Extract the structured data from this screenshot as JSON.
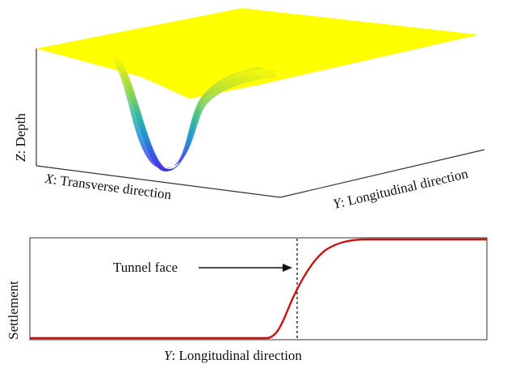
{
  "surface_3d": {
    "z_axis_label_var": "Z",
    "z_axis_label_text": ": Depth",
    "x_axis_label_var": "X",
    "x_axis_label_text": ": Transverse direction",
    "y_axis_label_var": "Y",
    "y_axis_label_text": ": Longitudinal direction",
    "colormap": [
      "#ffff00",
      "#c6e42a",
      "#7ed05a",
      "#2fb6a3",
      "#1e8fd6",
      "#3a55e6",
      "#4631e0"
    ]
  },
  "settlement_profile": {
    "ylabel": "Settlement",
    "xlabel_var": "Y",
    "xlabel_text": ": Longitudinal direction",
    "annotation": "Tunnel face",
    "curve_color": "#cc1111"
  }
}
